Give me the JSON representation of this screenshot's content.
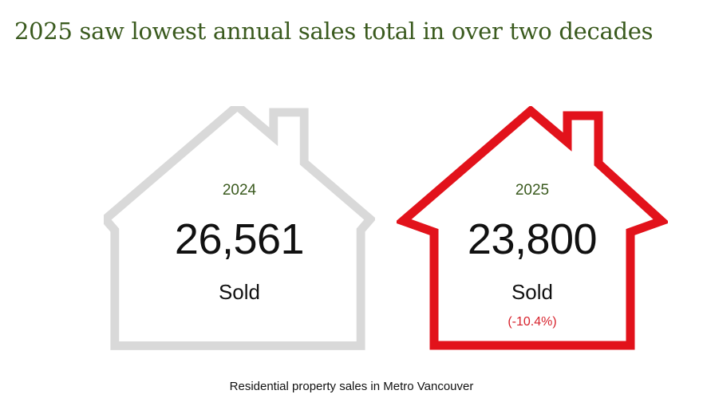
{
  "title": "2025 saw lowest annual sales total in over two decades",
  "houses": [
    {
      "year": "2024",
      "count": "26,561",
      "label": "Sold",
      "color": "#d9d9d9"
    },
    {
      "year": "2025",
      "count": "23,800",
      "label": "Sold",
      "change": "(-10.4%)",
      "color": "#e2121b"
    }
  ],
  "caption": "Residential property sales in Metro Vancouver"
}
